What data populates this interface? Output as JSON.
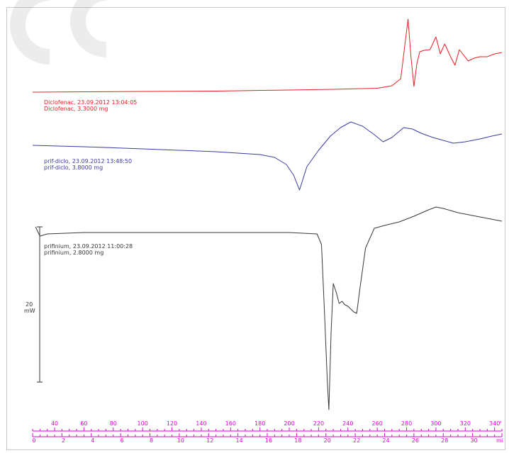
{
  "chart_data": {
    "type": "line",
    "title": "",
    "xlabel": "",
    "ylabel": "",
    "scale_bar": {
      "value": "20",
      "unit": "mW"
    },
    "temperature_axis": {
      "unit_label": "°",
      "ticks": [
        "40",
        "60",
        "80",
        "100",
        "120",
        "140",
        "160",
        "180",
        "200",
        "220",
        "240",
        "260",
        "280",
        "300",
        "320",
        "340"
      ],
      "range": [
        25,
        345
      ]
    },
    "time_axis": {
      "unit_label": "mi",
      "ticks": [
        "0",
        "2",
        "4",
        "6",
        "8",
        "10",
        "12",
        "14",
        "16",
        "18",
        "20",
        "22",
        "24",
        "26",
        "28",
        "30"
      ],
      "range": [
        0,
        32
      ]
    },
    "series": [
      {
        "name": "Diclofenac",
        "color": "#e62020",
        "label_line1": "Diclofenac, 23.09.2012 13:04:05",
        "label_line2": "Diclofenac, 3.3000 mg",
        "x": [
          25,
          60,
          100,
          150,
          180,
          200,
          230,
          260,
          270,
          276,
          279,
          281,
          283,
          285,
          287,
          289,
          292,
          296,
          300,
          303,
          306,
          310,
          313,
          316,
          319,
          322,
          326,
          330,
          335,
          340,
          345
        ],
        "y": [
          130,
          129.5,
          129,
          128.5,
          127.5,
          127,
          126,
          124.5,
          121,
          111,
          60,
          27,
          80,
          122,
          90,
          73,
          71,
          70,
          52,
          76,
          62,
          80,
          92,
          70,
          78,
          86,
          82,
          80,
          80,
          76,
          74
        ]
      },
      {
        "name": "prif-diclo",
        "color": "#3a3aa6",
        "label_line1": "prif-diclo, 23.09.2012 13:48:50",
        "label_line2": "prif-diclo, 3.8000 mg",
        "x": [
          25,
          60,
          100,
          150,
          180,
          190,
          198,
          203,
          207,
          212,
          220,
          228,
          235,
          242,
          250,
          258,
          264,
          270,
          278,
          284,
          290,
          298,
          305,
          312,
          320,
          330,
          338,
          345
        ],
        "y": [
          205,
          207,
          210,
          214,
          218,
          222,
          232,
          247,
          268,
          235,
          212,
          192,
          180,
          172,
          178,
          190,
          200,
          194,
          180,
          182,
          188,
          194,
          198,
          202,
          200,
          196,
          192,
          189
        ]
      },
      {
        "name": "prifinium",
        "color": "#383838",
        "label_line1": "prifinium, 23.09.2012 11:00:28",
        "label_line2": "prifinium, 2.8000 mg",
        "x": [
          27,
          30,
          35,
          60,
          100,
          150,
          200,
          219,
          222,
          224,
          226,
          227,
          228.5,
          230,
          232,
          234,
          236,
          238,
          240,
          242,
          244,
          246,
          248,
          252,
          258,
          265,
          275,
          285,
          295,
          300,
          305,
          315,
          325,
          335,
          345
        ],
        "y": [
          320,
          333,
          330,
          328,
          328,
          328,
          328,
          330,
          345,
          440,
          540,
          578,
          470,
          400,
          412,
          428,
          425,
          430,
          432,
          436,
          440,
          442,
          410,
          350,
          322,
          318,
          313,
          305,
          296,
          292,
          294,
          300,
          304,
          308,
          312
        ]
      }
    ],
    "legend": "inline-labels-left"
  }
}
